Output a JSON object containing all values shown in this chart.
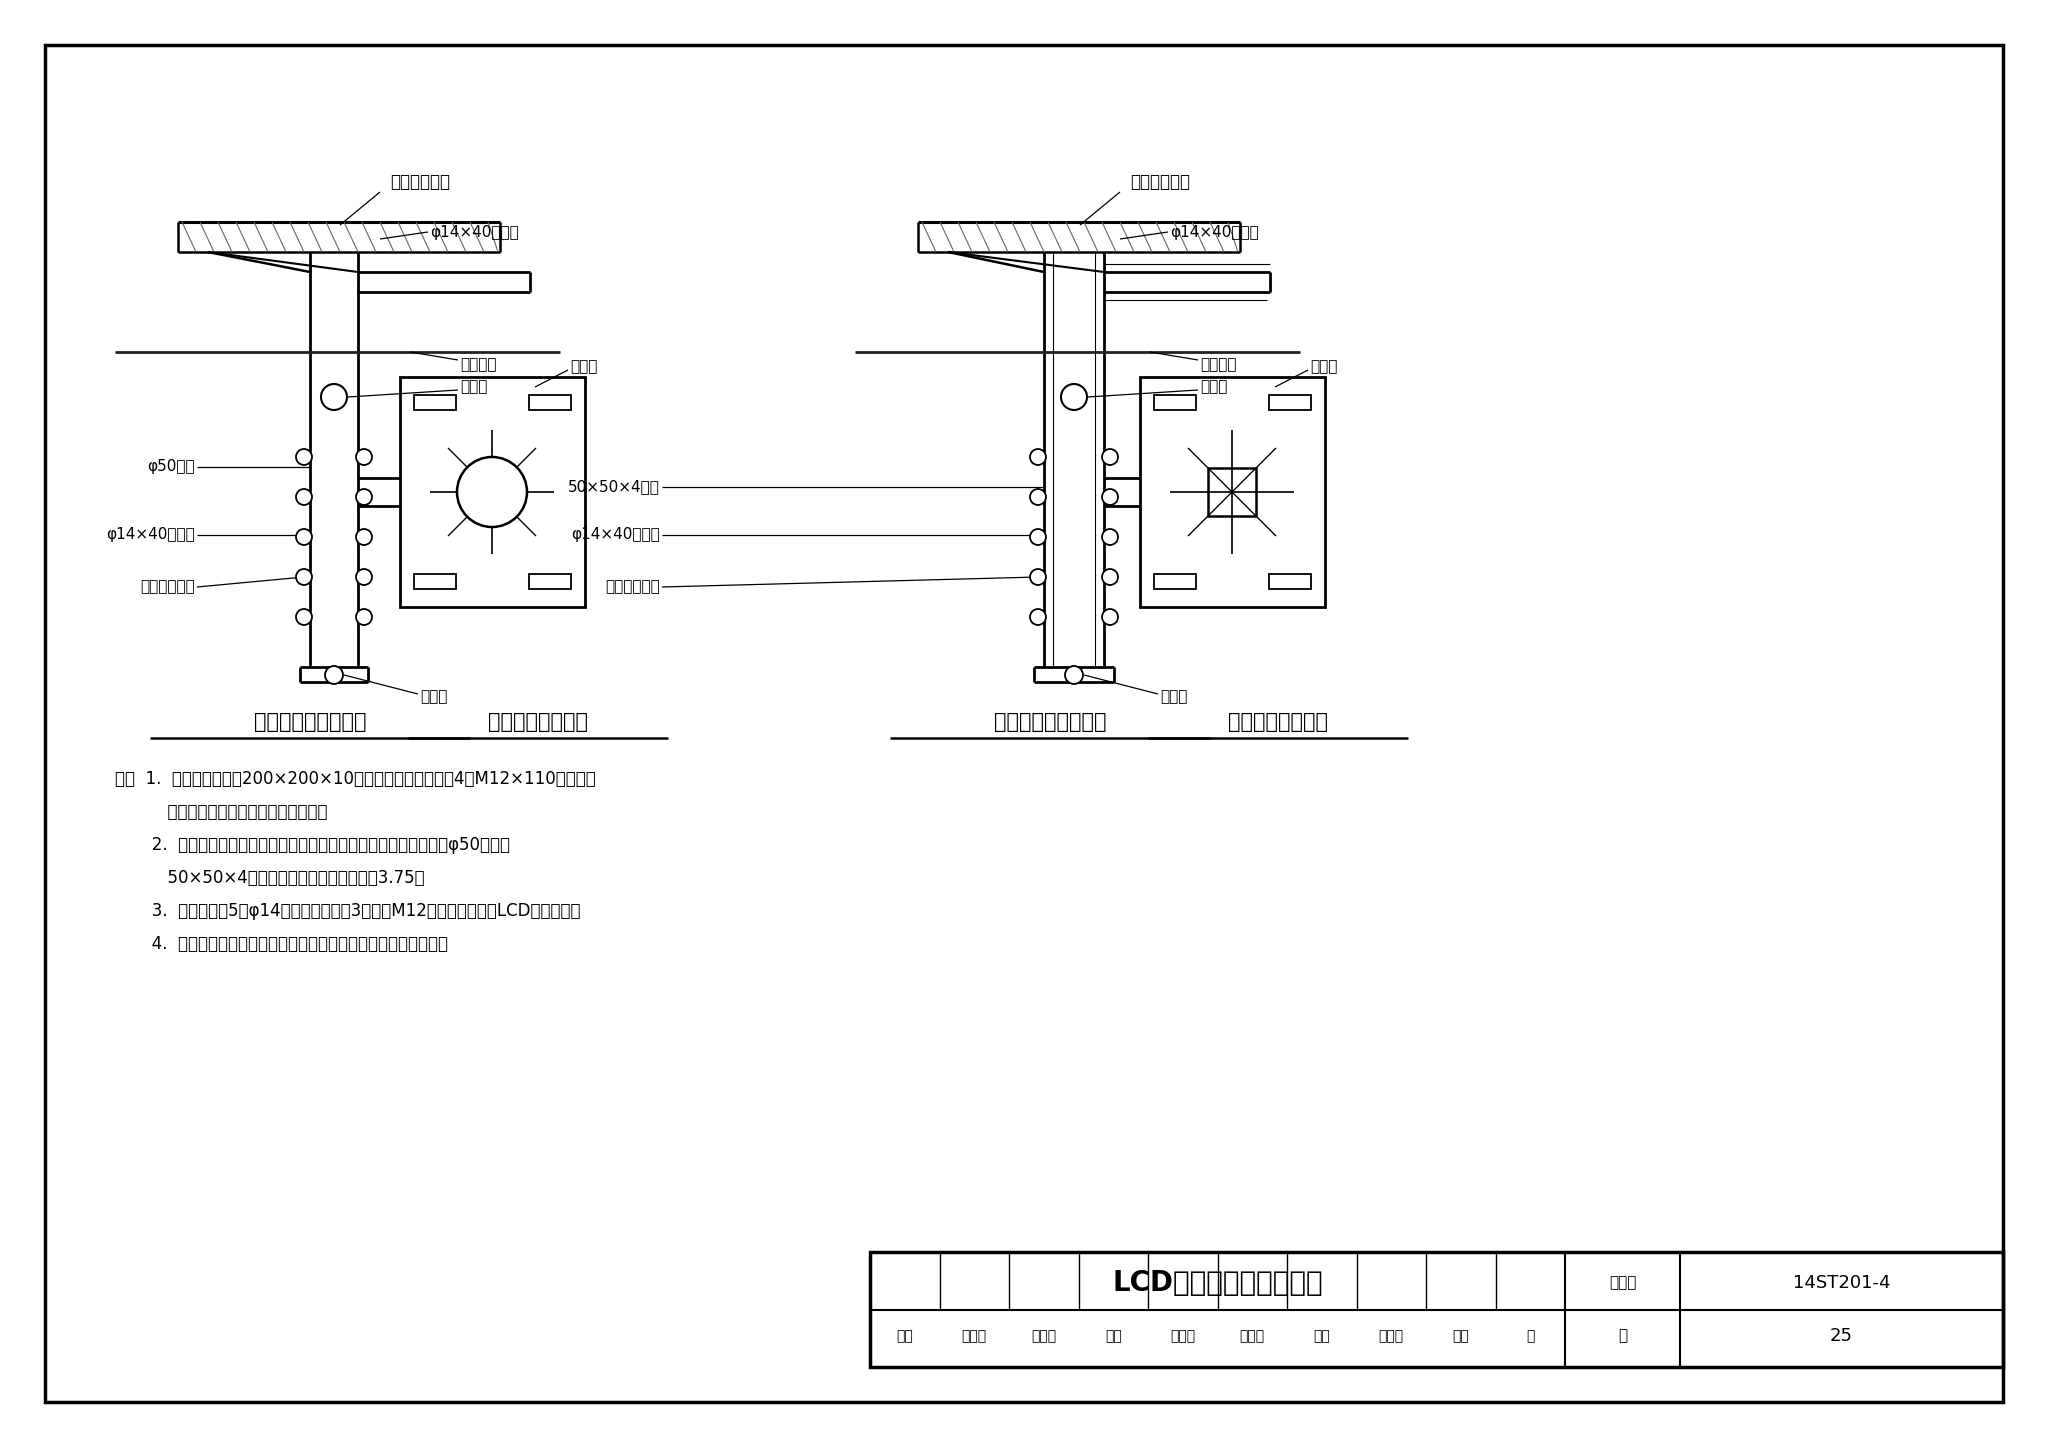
{
  "title": "LCD显示屏吊挂件安装图",
  "drawing_number": "14ST201-4",
  "page": "25",
  "bg_color": "#ffffff",
  "border_color": "#000000",
  "label1": "圆管吊挂件正立面图",
  "label2": "圆管吊挂件法兰盘",
  "label3": "方管吊挂件正立面图",
  "label4": "方管吊挂件法兰盘",
  "annot_jiagouban": "加劲板",
  "annot_diaogua": "吊挂件法兰盘",
  "annot_zhuangxiu": "装修吊顶",
  "annot_phi14_top": "φ14×40长圆孔",
  "annot_jinxian": "进线孔",
  "annot_ganguan": "φ50钢管",
  "annot_phi14_mid": "φ14×40长圆孔",
  "annot_dengju": "等距离调节孔",
  "annot_chuxian": "出线孔",
  "annot_fangguang": "50×50×4方管",
  "annot_phi14_r_mid": "φ14×40长圆孔",
  "notes_line1": "注：  1.  法兰采用规格为200×200×10的钢板制作，需要采用4个M12×110膨胀螺栓",
  "notes_line2": "          植入主体结构内且安装牢固、稳定。",
  "notes_line3": "       2.  法兰与主吊杆采用焊接方式连接，通过加劲板固定，主杆采用φ50钢管或",
  "notes_line4": "          50×50×4方管制作，管壁厚度不得小于3.75。",
  "notes_line5": "       3.  下吊杆设有5个φ14的调整孔，其中3个采用M12的高强度螺栓和LCD箱体固定。",
  "notes_line6": "       4.  吊挂件做防腐防锈处理，下吊杆根据装修风格做喷塑型处理。",
  "tb_row1": [
    "审核",
    "王富章",
    "王琦炜",
    "校对",
    "高洪波",
    "高沈昽",
    "设计",
    "吴龙飞",
    "王昕",
    "页"
  ],
  "tb_label_jji": "图集号"
}
